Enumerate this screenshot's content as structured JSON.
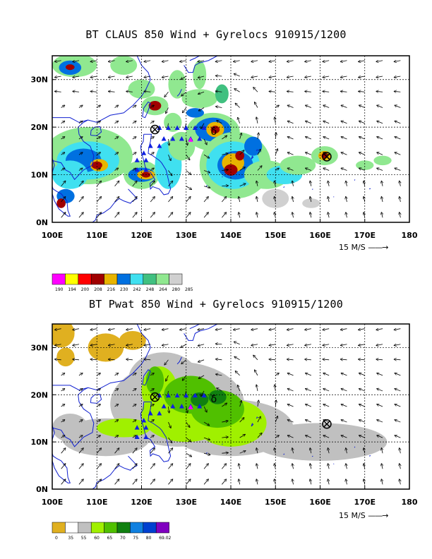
{
  "panels": [
    {
      "title": "BT CLAUS 850 Wind + Gyrelocs 910915/1200",
      "lon_labels": [
        "100E",
        "110E",
        "120E",
        "130E",
        "140E",
        "150E",
        "160E",
        "170E",
        "180"
      ],
      "lat_labels": [
        "0N",
        "10N",
        "20N",
        "30N"
      ],
      "scale_label": "15 M/S",
      "legend_colors": [
        "#ff00ff",
        "#ffff00",
        "#ff0000",
        "#a00000",
        "#e8b400",
        "#0070e0",
        "#40e0f0",
        "#40c080",
        "#90e890",
        "#d0d0d0"
      ],
      "legend_labels": [
        "190",
        "194",
        "200",
        "208",
        "216",
        "230",
        "242",
        "248",
        "264",
        "280",
        "285"
      ]
    },
    {
      "title": "BT Pwat 850 Wind + Gyrelocs 910915/1200",
      "lon_labels": [
        "100E",
        "110E",
        "120E",
        "130E",
        "140E",
        "150E",
        "160E",
        "170E",
        "180"
      ],
      "lat_labels": [
        "0N",
        "10N",
        "20N",
        "30N"
      ],
      "scale_label": "15 M/S",
      "legend_colors": [
        "#e0b020",
        "#ffffff",
        "#c0c0c0",
        "#a0f000",
        "#50c000",
        "#108010",
        "#1080e0",
        "#0040d0",
        "#8000c0"
      ],
      "legend_labels": [
        "0",
        "35",
        "55",
        "60",
        "65",
        "70",
        "75",
        "80",
        "69.02"
      ]
    }
  ]
}
